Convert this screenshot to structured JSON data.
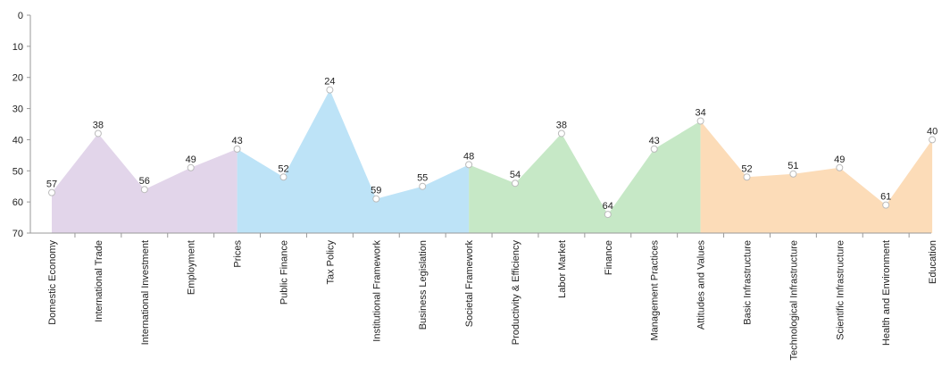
{
  "chart_data": {
    "type": "area",
    "y_axis": {
      "range": [
        0,
        70
      ],
      "inverted": true,
      "ticks": [
        0,
        10,
        20,
        30,
        40,
        50,
        60,
        70
      ]
    },
    "categories": [
      "Domestic Economy",
      "International Trade",
      "International Investment",
      "Employment",
      "Prices",
      "Public Finance",
      "Tax Policy",
      "Institutional Framework",
      "Business Legislation",
      "Societal Framework",
      "Productivity & Efficiency",
      "Labor Market",
      "Finance",
      "Management Practices",
      "Attitudes and Values",
      "Basic Infrastructure",
      "Technological Infrastructure",
      "Scientific Infrastructure",
      "Health and Environment",
      "Education"
    ],
    "values": [
      57,
      38,
      56,
      49,
      43,
      52,
      24,
      59,
      55,
      48,
      54,
      38,
      64,
      43,
      34,
      52,
      51,
      49,
      61,
      40
    ],
    "groups": [
      {
        "start": 0,
        "end": 4,
        "color": "#e2d5ea"
      },
      {
        "start": 4,
        "end": 9,
        "color": "#bde3f7"
      },
      {
        "start": 9,
        "end": 14,
        "color": "#c6e8c6"
      },
      {
        "start": 14,
        "end": 19,
        "color": "#fcdcb8"
      }
    ],
    "point_color": "#ffffff",
    "axis_color": "#999999",
    "grid": false
  }
}
